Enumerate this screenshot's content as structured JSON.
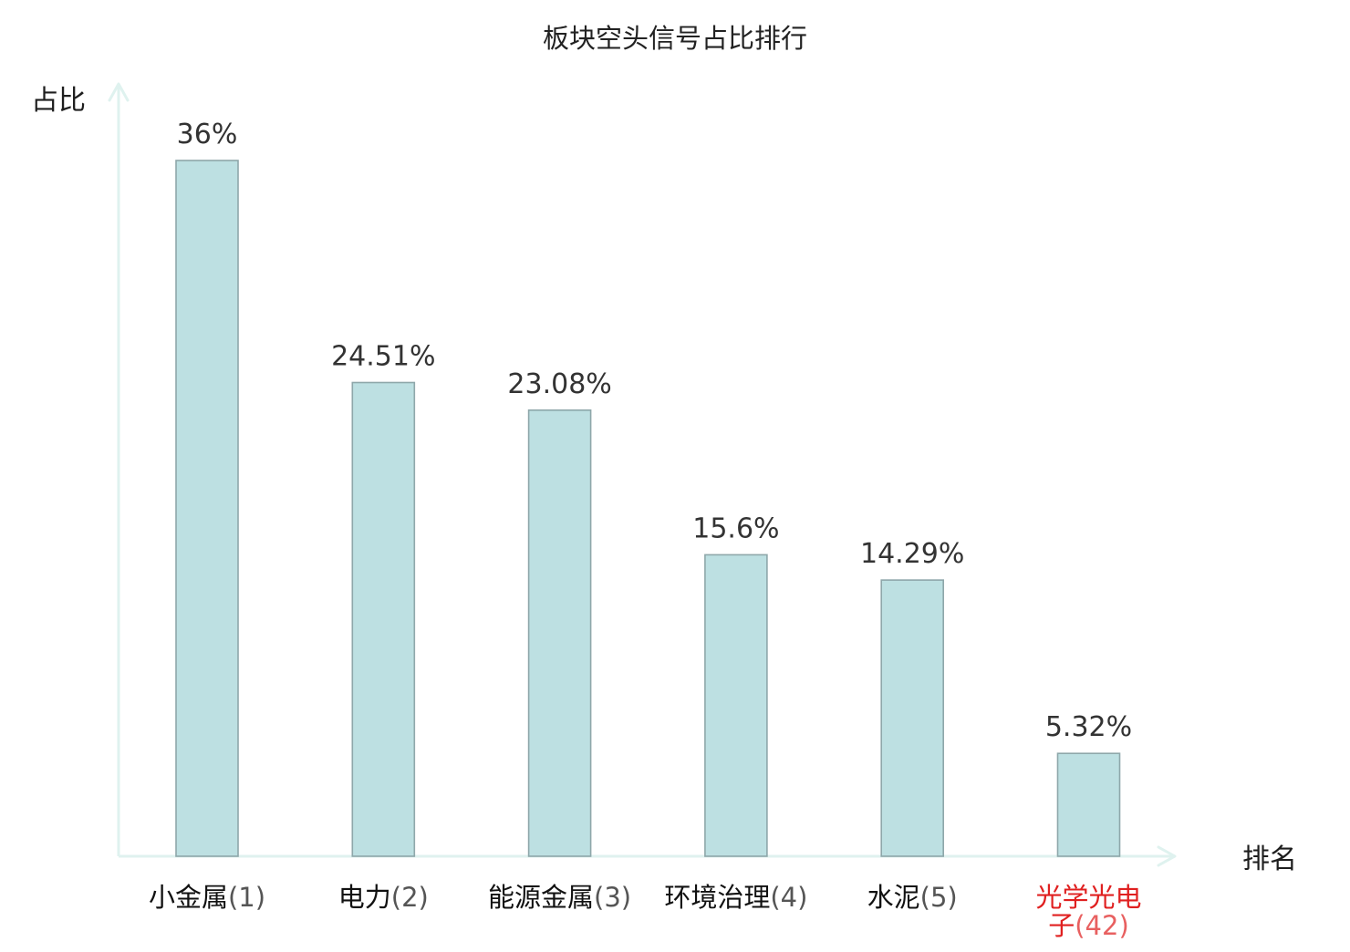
{
  "chart_data": {
    "type": "bar",
    "title": "板块空头信号占比排行",
    "ylabel": "占比",
    "xlabel": "排名",
    "ylim": [
      0,
      36
    ],
    "grid": false,
    "categories": [
      {
        "name": "小金属",
        "rank": "(1)",
        "highlight": false
      },
      {
        "name": "电力",
        "rank": "(2)",
        "highlight": false
      },
      {
        "name": "能源金属",
        "rank": "(3)",
        "highlight": false
      },
      {
        "name": "环境治理",
        "rank": "(4)",
        "highlight": false
      },
      {
        "name": "水泥",
        "rank": "(5)",
        "highlight": false
      },
      {
        "name": "光学光电子",
        "rank": "(42)",
        "highlight": true
      }
    ],
    "values": [
      36,
      24.51,
      23.08,
      15.6,
      14.29,
      5.32
    ],
    "value_labels": [
      "36%",
      "24.51%",
      "23.08%",
      "15.6%",
      "14.29%",
      "5.32%"
    ]
  },
  "colors": {
    "bar_fill": "#bde0e2",
    "bar_stroke": "#8ea7aa",
    "axis": "#dff2ef",
    "highlight": "#e02020"
  }
}
